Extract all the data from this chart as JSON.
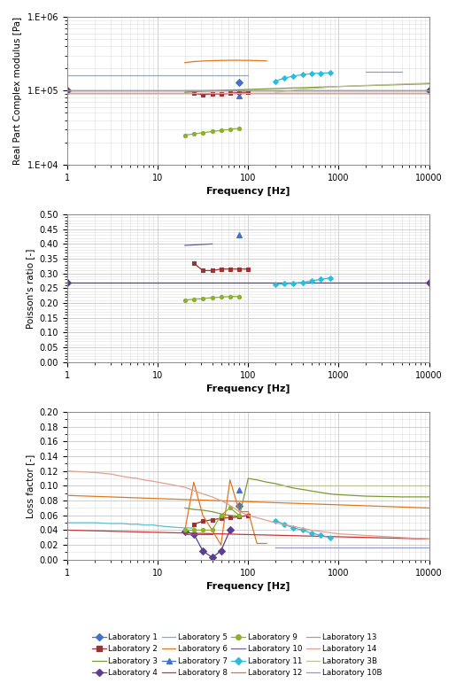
{
  "labs": [
    "Laboratory 1",
    "Laboratory 2",
    "Laboratory 3",
    "Laboratory 4",
    "Laboratory 5",
    "Laboratory 6",
    "Laboratory 7",
    "Laboratory 8",
    "Laboratory 9",
    "Laboratory 10",
    "Laboratory 11",
    "Laboratory 12",
    "Laboratory 13",
    "Laboratory 14",
    "Laboratory 3B",
    "Laboratory 10B"
  ],
  "colors": {
    "Laboratory 1": "#4472C4",
    "Laboratory 2": "#9E3132",
    "Laboratory 3": "#7A9A35",
    "Laboratory 4": "#5C3D8F",
    "Laboratory 5": "#5BBFCC",
    "Laboratory 6": "#E07820",
    "Laboratory 7": "#4472C4",
    "Laboratory 8": "#CC3333",
    "Laboratory 9": "#8DB030",
    "Laboratory 10": "#7060A0",
    "Laboratory 11": "#30BBDD",
    "Laboratory 12": "#E07820",
    "Laboratory 13": "#A0A0A0",
    "Laboratory 14": "#E0A090",
    "Laboratory 3B": "#C0C098",
    "Laboratory 10B": "#9898C8"
  },
  "E_data": {
    "Laboratory 1": {
      "freq": [
        80
      ],
      "val": [
        130000
      ]
    },
    "Laboratory 2": {
      "freq": [
        25,
        31.5,
        40,
        50,
        63,
        80,
        100
      ],
      "val": [
        93000,
        88000,
        91000,
        90000,
        92000,
        95000,
        95000
      ]
    },
    "Laboratory 3": {
      "freq": [
        20,
        25,
        31.5,
        40,
        50,
        63,
        80,
        100,
        125,
        160,
        200,
        250,
        316,
        400,
        500,
        630,
        800,
        1000,
        2000,
        5000,
        10000
      ],
      "val": [
        95000,
        97000,
        99000,
        100000,
        101000,
        102000,
        103000,
        104000,
        105000,
        106000,
        107000,
        108000,
        109000,
        110000,
        111000,
        112000,
        113000,
        114000,
        117000,
        121000,
        124000
      ]
    },
    "Laboratory 4": {
      "freq": [
        1,
        10000
      ],
      "val": [
        100000,
        100000
      ]
    },
    "Laboratory 5": {
      "freq": [
        1,
        100
      ],
      "val": [
        160000,
        160000
      ]
    },
    "Laboratory 6": {
      "freq": [
        20,
        25,
        31.5,
        40,
        50,
        63,
        80,
        100,
        125,
        160
      ],
      "val": [
        240000,
        248000,
        252000,
        255000,
        257000,
        258000,
        258000,
        257000,
        256000,
        253000
      ]
    },
    "Laboratory 7": {
      "freq": [
        80
      ],
      "val": [
        85000
      ]
    },
    "Laboratory 8": {
      "freq": [
        1,
        10000
      ],
      "val": [
        94000,
        94000
      ]
    },
    "Laboratory 9": {
      "freq": [
        20,
        25,
        31.5,
        40,
        50,
        63,
        80
      ],
      "val": [
        25000,
        26000,
        27000,
        28000,
        29000,
        30000,
        31000
      ]
    },
    "Laboratory 10": {
      "freq": [
        20,
        40
      ],
      "val": [
        100000,
        100000
      ]
    },
    "Laboratory 11": {
      "freq": [
        200,
        250,
        316,
        400,
        500,
        630,
        800
      ],
      "val": [
        135000,
        148000,
        158000,
        165000,
        170000,
        173000,
        175000
      ]
    },
    "Laboratory 12": {
      "freq": [
        1,
        10000
      ],
      "val": [
        100000,
        100000
      ]
    },
    "Laboratory 13": {
      "freq": [
        1,
        10000
      ],
      "val": [
        100000,
        100000
      ]
    },
    "Laboratory 14": {
      "freq": [
        1,
        10000
      ],
      "val": [
        93000,
        93000
      ]
    },
    "Laboratory 3B": {
      "freq": [
        200,
        250,
        316,
        400,
        500,
        630,
        800,
        1000,
        2000,
        5000,
        10000
      ],
      "val": [
        95000,
        98000,
        102000,
        105000,
        107000,
        109000,
        112000,
        114000,
        118000,
        123000,
        127000
      ]
    },
    "Laboratory 10B": {
      "freq": [
        2000,
        5000
      ],
      "val": [
        180000,
        180000
      ]
    }
  },
  "nu_data": {
    "Laboratory 1": {
      "freq": [],
      "val": []
    },
    "Laboratory 2": {
      "freq": [
        25,
        31.5,
        40,
        50,
        63,
        80,
        100
      ],
      "val": [
        0.335,
        0.31,
        0.31,
        0.315,
        0.315,
        0.315,
        0.315
      ]
    },
    "Laboratory 3": {
      "freq": [],
      "val": []
    },
    "Laboratory 4": {
      "freq": [
        1,
        10000
      ],
      "val": [
        0.268,
        0.268
      ]
    },
    "Laboratory 5": {
      "freq": [],
      "val": []
    },
    "Laboratory 6": {
      "freq": [],
      "val": []
    },
    "Laboratory 7": {
      "freq": [
        80
      ],
      "val": [
        0.43
      ]
    },
    "Laboratory 8": {
      "freq": [],
      "val": []
    },
    "Laboratory 9": {
      "freq": [
        20,
        25,
        31.5,
        40,
        50,
        63,
        80
      ],
      "val": [
        0.21,
        0.213,
        0.215,
        0.218,
        0.22,
        0.222,
        0.222
      ]
    },
    "Laboratory 10": {
      "freq": [
        20,
        40
      ],
      "val": [
        0.395,
        0.4
      ]
    },
    "Laboratory 11": {
      "freq": [
        200,
        250,
        316,
        400,
        500,
        630,
        800
      ],
      "val": [
        0.262,
        0.265,
        0.267,
        0.27,
        0.275,
        0.28,
        0.285
      ]
    },
    "Laboratory 12": {
      "freq": [],
      "val": []
    },
    "Laboratory 13": {
      "freq": [],
      "val": []
    },
    "Laboratory 14": {
      "freq": [],
      "val": []
    },
    "Laboratory 3B": {
      "freq": [],
      "val": []
    },
    "Laboratory 10B": {
      "freq": [],
      "val": []
    }
  },
  "eta_data": {
    "Laboratory 1": {
      "freq": [
        80
      ],
      "val": [
        0.073
      ]
    },
    "Laboratory 2": {
      "freq": [
        25,
        31.5,
        40,
        50,
        63,
        80,
        100
      ],
      "val": [
        0.048,
        0.052,
        0.054,
        0.056,
        0.057,
        0.058,
        0.06
      ]
    },
    "Laboratory 3": {
      "freq": [
        20,
        25,
        31.5,
        40,
        50,
        63,
        80,
        100,
        125,
        160,
        200,
        250,
        316,
        400,
        500,
        630,
        800,
        1000,
        2000,
        5000,
        10000
      ],
      "val": [
        0.07,
        0.068,
        0.067,
        0.065,
        0.062,
        0.06,
        0.059,
        0.11,
        0.108,
        0.105,
        0.103,
        0.1,
        0.097,
        0.095,
        0.093,
        0.091,
        0.089,
        0.088,
        0.086,
        0.085,
        0.085
      ]
    },
    "Laboratory 4": {
      "freq": [
        20,
        25,
        31.5,
        40,
        50,
        63
      ],
      "val": [
        0.038,
        0.035,
        0.012,
        0.003,
        0.012,
        0.04
      ]
    },
    "Laboratory 5": {
      "freq": [
        1,
        2,
        3,
        4,
        5,
        6,
        7,
        8,
        9,
        10,
        12,
        15,
        20,
        25
      ],
      "val": [
        0.05,
        0.05,
        0.049,
        0.049,
        0.048,
        0.048,
        0.047,
        0.047,
        0.047,
        0.046,
        0.045,
        0.044,
        0.043,
        0.043
      ]
    },
    "Laboratory 6": {
      "freq": [
        20,
        25,
        31.5,
        40,
        50,
        63,
        80,
        100,
        125,
        160
      ],
      "val": [
        0.04,
        0.105,
        0.06,
        0.04,
        0.02,
        0.108,
        0.065,
        0.065,
        0.022,
        0.022
      ]
    },
    "Laboratory 7": {
      "freq": [
        80
      ],
      "val": [
        0.094
      ]
    },
    "Laboratory 8": {
      "freq": [
        1,
        10000
      ],
      "val": [
        0.04,
        0.028
      ]
    },
    "Laboratory 9": {
      "freq": [
        20,
        25,
        31.5,
        40,
        50,
        63,
        80
      ],
      "val": [
        0.04,
        0.04,
        0.04,
        0.04,
        0.06,
        0.07,
        0.06
      ]
    },
    "Laboratory 10": {
      "freq": [
        20,
        40
      ],
      "val": [
        0.035,
        0.035
      ]
    },
    "Laboratory 11": {
      "freq": [
        200,
        250,
        316,
        400,
        500,
        630,
        800
      ],
      "val": [
        0.053,
        0.048,
        0.043,
        0.04,
        0.036,
        0.033,
        0.03
      ]
    },
    "Laboratory 12": {
      "freq": [
        1,
        10000
      ],
      "val": [
        0.087,
        0.07
      ]
    },
    "Laboratory 13": {
      "freq": [],
      "val": []
    },
    "Laboratory 14": {
      "freq": [
        1,
        2,
        3,
        4,
        5,
        6,
        7,
        8,
        9,
        10,
        15,
        20,
        30,
        40,
        50,
        60,
        80,
        100,
        200,
        500,
        1000,
        5000,
        10000
      ],
      "val": [
        0.12,
        0.118,
        0.116,
        0.113,
        0.111,
        0.11,
        0.108,
        0.107,
        0.106,
        0.105,
        0.101,
        0.098,
        0.09,
        0.085,
        0.08,
        0.075,
        0.065,
        0.06,
        0.05,
        0.04,
        0.035,
        0.03,
        0.028
      ]
    },
    "Laboratory 3B": {
      "freq": [
        200,
        250,
        316,
        400,
        500,
        630,
        800,
        1000,
        2000,
        5000,
        10000
      ],
      "val": [
        0.1,
        0.1,
        0.1,
        0.1,
        0.1,
        0.1,
        0.1,
        0.1,
        0.1,
        0.1,
        0.1
      ]
    },
    "Laboratory 10B": {
      "freq": [
        200,
        10000
      ],
      "val": [
        0.016,
        0.016
      ]
    }
  },
  "markers": {
    "Laboratory 1": "D",
    "Laboratory 2": "s",
    "Laboratory 3": "none",
    "Laboratory 4": "D",
    "Laboratory 5": "none",
    "Laboratory 6": "none",
    "Laboratory 7": "^",
    "Laboratory 8": "none",
    "Laboratory 9": "o",
    "Laboratory 10": "none",
    "Laboratory 11": "D",
    "Laboratory 12": "none",
    "Laboratory 13": "none",
    "Laboratory 14": "none",
    "Laboratory 3B": "none",
    "Laboratory 10B": "none"
  },
  "linestyles": {
    "Laboratory 1": "none",
    "Laboratory 2": "-",
    "Laboratory 3": "-",
    "Laboratory 4": "-",
    "Laboratory 5": "-",
    "Laboratory 6": "-",
    "Laboratory 7": "none",
    "Laboratory 8": "-",
    "Laboratory 9": "-",
    "Laboratory 10": "-",
    "Laboratory 11": "-",
    "Laboratory 12": "-",
    "Laboratory 13": "-",
    "Laboratory 14": "-",
    "Laboratory 3B": "-",
    "Laboratory 10B": "-"
  }
}
